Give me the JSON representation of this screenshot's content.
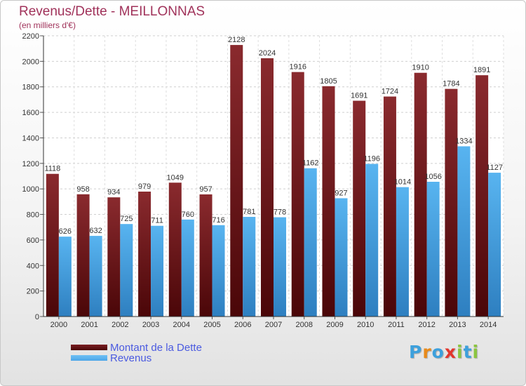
{
  "chart_data": {
    "type": "bar",
    "title": "Revenus/Dette - MEILLONNAS",
    "subtitle": "(en milliers d'€)",
    "categories": [
      "2000",
      "2001",
      "2002",
      "2003",
      "2004",
      "2005",
      "2006",
      "2007",
      "2008",
      "2009",
      "2010",
      "2011",
      "2012",
      "2013",
      "2014"
    ],
    "series": [
      {
        "name": "Montant de la Dette",
        "color": "#7a1e22",
        "values": [
          1118,
          958,
          934,
          979,
          1049,
          957,
          2128,
          2024,
          1916,
          1805,
          1691,
          1724,
          1910,
          1784,
          1891
        ]
      },
      {
        "name": "Revenus",
        "color": "#4da6e8",
        "values": [
          626,
          632,
          725,
          711,
          760,
          716,
          781,
          778,
          1162,
          927,
          1196,
          1014,
          1056,
          1334,
          1127
        ]
      }
    ],
    "yticks": [
      0,
      200,
      400,
      600,
      800,
      1000,
      1200,
      1400,
      1600,
      1800,
      2000,
      2200
    ],
    "ylim": [
      0,
      2200
    ],
    "grid": true,
    "legend": "bottom-left"
  },
  "branding": {
    "letters": [
      "P",
      "r",
      "o",
      "x",
      "i",
      "t",
      "i"
    ],
    "colors": [
      "#3da0dc",
      "#e88a1a",
      "#3da0dc",
      "#e2362d",
      "#8bc53f",
      "#3da0dc",
      "#8bc53f"
    ]
  }
}
